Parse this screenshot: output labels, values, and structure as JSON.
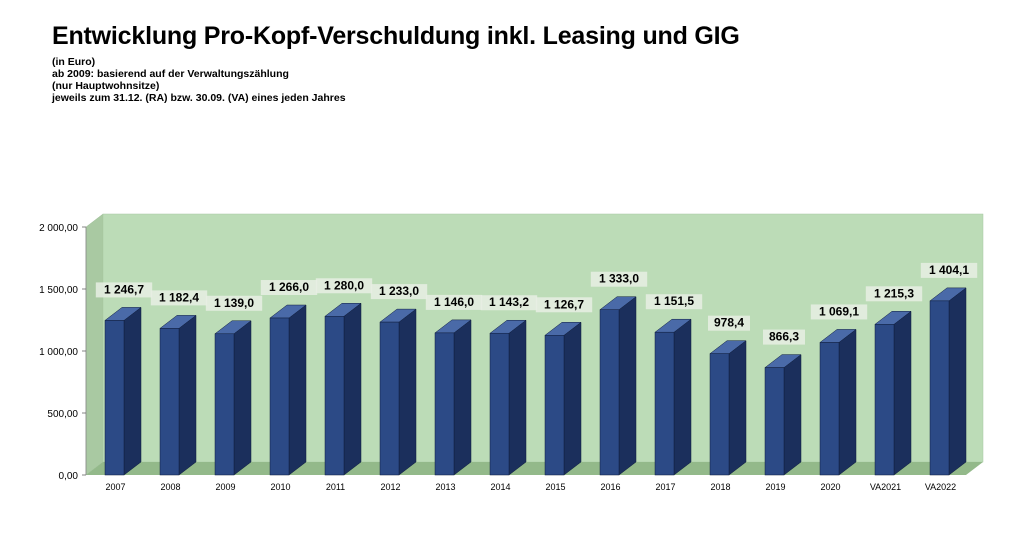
{
  "header": {
    "title": "Entwicklung Pro-Kopf-Verschuldung inkl. Leasing und GIG",
    "subtitle_lines": [
      "(in Euro)",
      "ab 2009: basierend auf der Verwaltungszählung",
      "(nur Hauptwohnsitze)",
      "jeweils zum 31.12. (RA) bzw. 30.09. (VA) eines jeden Jahres"
    ]
  },
  "colors": {
    "wall": "#bcdcb7",
    "floor": "#93b98a",
    "bar_front": "#2c4a86",
    "bar_side": "#1b2f5c",
    "bar_top": "#4a6aa8"
  },
  "chart_data": {
    "type": "bar",
    "title": "Entwicklung Pro-Kopf-Verschuldung inkl. Leasing und GIG",
    "categories": [
      "2007",
      "2008",
      "2009",
      "2010",
      "2011",
      "2012",
      "2013",
      "2014",
      "2015",
      "2016",
      "2017",
      "2018",
      "2019",
      "2020",
      "VA2021",
      "VA2022"
    ],
    "values": [
      1246.7,
      1182.4,
      1139.0,
      1266.0,
      1280.0,
      1233.0,
      1146.0,
      1143.2,
      1126.7,
      1333.0,
      1151.5,
      978.4,
      866.3,
      1069.1,
      1215.3,
      1404.1
    ],
    "value_labels": [
      "1 246,7",
      "1 182,4",
      "1 139,0",
      "1 266,0",
      "1 280,0",
      "1 233,0",
      "1 146,0",
      "1 143,2",
      "1 126,7",
      "1 333,0",
      "1 151,5",
      "978,4",
      "866,3",
      "1 069,1",
      "1 215,3",
      "1 404,1"
    ],
    "yticks": [
      0,
      500,
      1000,
      1500,
      2000
    ],
    "ytick_labels": [
      "0,00",
      "500,00",
      "1 000,00",
      "1 500,00",
      "2 000,00"
    ],
    "ylim": [
      0,
      2000
    ],
    "grid": false,
    "legend": "none"
  }
}
